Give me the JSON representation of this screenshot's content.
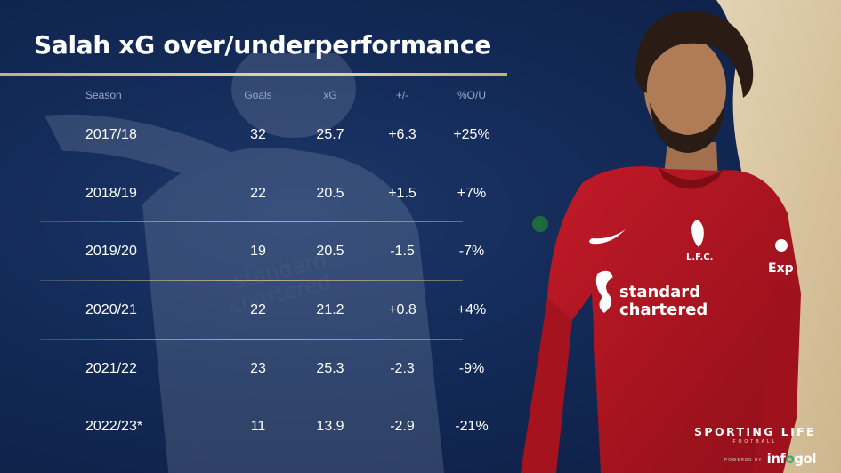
{
  "title": "Salah xG over/underperformance",
  "table": {
    "headers": [
      "Season",
      "Goals",
      "xG",
      "+/-",
      "%O/U"
    ],
    "rows": [
      {
        "season": "2017/18",
        "goals": "32",
        "xg": "25.7",
        "diff": "+6.3",
        "pct": "+25%"
      },
      {
        "season": "2018/19",
        "goals": "22",
        "xg": "20.5",
        "diff": "+1.5",
        "pct": "+7%"
      },
      {
        "season": "2019/20",
        "goals": "19",
        "xg": "20.5",
        "diff": "-1.5",
        "pct": "-7%"
      },
      {
        "season": "2020/21",
        "goals": "22",
        "xg": "21.2",
        "diff": "+0.8",
        "pct": "+4%"
      },
      {
        "season": "2021/22",
        "goals": "23",
        "xg": "25.3",
        "diff": "-2.3",
        "pct": "-9%"
      },
      {
        "season": "2022/23*",
        "goals": "11",
        "xg": "13.9",
        "diff": "-2.9",
        "pct": "-21%"
      }
    ]
  },
  "photo": {
    "shirt_sponsor_line1": "standard",
    "shirt_sponsor_line2": "chartered",
    "crest_text": "L.F.C.",
    "sleeve_sponsor": "Exp"
  },
  "ghost": {
    "sponsor_line1": "standard",
    "sponsor_line2": "chartered"
  },
  "branding": {
    "name": "SPORTING LIFE",
    "sub": "FOOTBALL",
    "powered_by": "POWERED BY",
    "partner_a": "inf",
    "partner_b": "o",
    "partner_c": "g",
    "partner_d": "o",
    "partner_e": "l"
  },
  "colors": {
    "background": "#132a57",
    "accent_gold": "#c8b07a",
    "shirt_red": "#b3121f",
    "infogol_green": "#2bb673"
  }
}
